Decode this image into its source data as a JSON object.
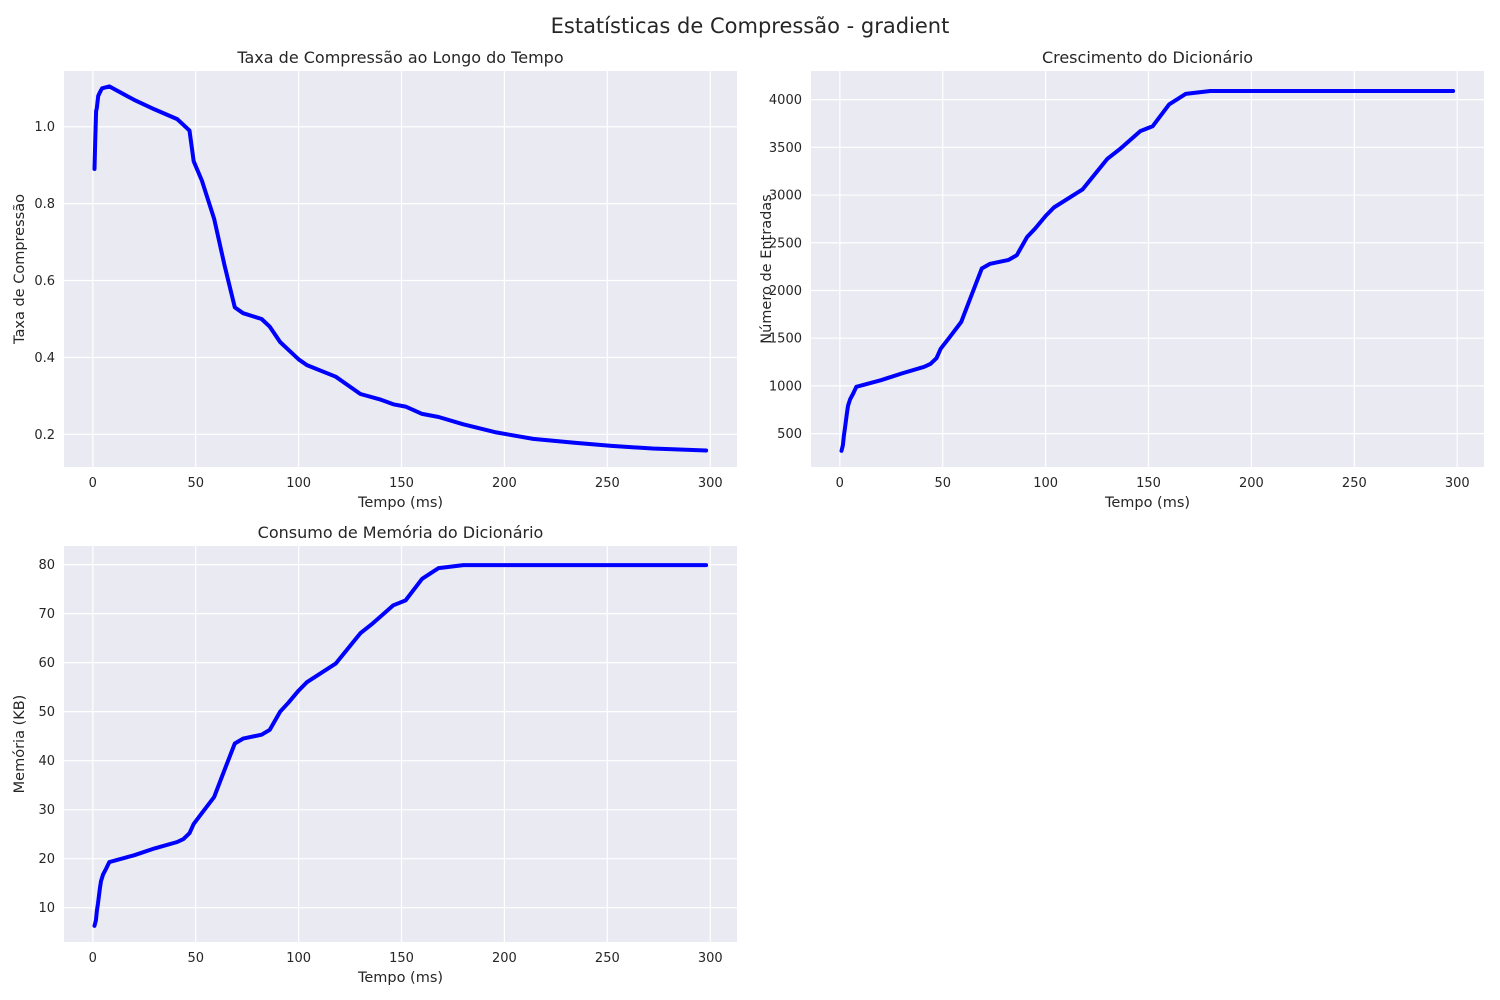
{
  "figure": {
    "suptitle": "Estatísticas de Compressão - gradient",
    "line_color": "#0000ff",
    "axes_bg": "#eaeaf2",
    "grid_color": "#ffffff"
  },
  "chart_data": [
    {
      "type": "line",
      "title": "Taxa de Compressão ao Longo do Tempo",
      "xlabel": "Tempo (ms)",
      "ylabel": "Taxa de Compressão",
      "xlim": [
        -14,
        313
      ],
      "ylim": [
        0.115,
        1.145
      ],
      "xticks": [
        0,
        50,
        100,
        150,
        200,
        250,
        300
      ],
      "yticks": [
        0.2,
        0.4,
        0.6,
        0.8,
        1.0
      ],
      "ytick_labels": [
        "0.2",
        "0.4",
        "0.6",
        "0.8",
        "1.0"
      ],
      "grid": true,
      "series": [
        {
          "x": [
            0.8,
            1.2,
            1.6,
            2.0,
            2.6,
            3.5,
            4.5,
            8,
            20,
            30,
            41,
            44,
            47,
            49,
            53,
            59,
            64,
            69,
            73,
            82,
            86,
            91,
            95,
            100,
            104,
            118,
            130,
            140,
            146,
            152,
            160,
            168,
            180,
            196,
            214,
            234,
            252,
            272,
            298
          ],
          "y": [
            0.89,
            0.97,
            1.04,
            1.05,
            1.08,
            1.09,
            1.1,
            1.105,
            1.07,
            1.045,
            1.02,
            1.005,
            0.99,
            0.91,
            0.86,
            0.76,
            0.64,
            0.53,
            0.515,
            0.5,
            0.48,
            0.44,
            0.42,
            0.395,
            0.38,
            0.35,
            0.305,
            0.29,
            0.278,
            0.272,
            0.253,
            0.245,
            0.226,
            0.205,
            0.188,
            0.178,
            0.17,
            0.163,
            0.158
          ]
        }
      ]
    },
    {
      "type": "line",
      "title": "Crescimento do Dicionário",
      "xlabel": "Tempo (ms)",
      "ylabel": "Número de Entradas",
      "xlim": [
        -14,
        313
      ],
      "ylim": [
        150,
        4300
      ],
      "xticks": [
        0,
        50,
        100,
        150,
        200,
        250,
        300
      ],
      "yticks": [
        500,
        1000,
        1500,
        2000,
        2500,
        3000,
        3500,
        4000
      ],
      "ytick_labels": [
        "500",
        "1000",
        "1500",
        "2000",
        "2500",
        "3000",
        "3500",
        "4000"
      ],
      "grid": true,
      "series": [
        {
          "x": [
            0.8,
            1.5,
            2.0,
            2.5,
            3.0,
            3.5,
            4.0,
            5.0,
            6.5,
            8,
            20,
            30,
            41,
            44,
            47,
            49,
            53,
            59,
            64,
            69,
            73,
            82,
            86,
            91,
            95,
            100,
            104,
            118,
            130,
            136,
            146,
            152,
            160,
            168,
            180,
            200,
            250,
            298
          ],
          "y": [
            320,
            380,
            480,
            560,
            640,
            720,
            790,
            860,
            920,
            990,
            1060,
            1130,
            1200,
            1230,
            1290,
            1390,
            1500,
            1670,
            1950,
            2230,
            2280,
            2320,
            2370,
            2560,
            2650,
            2780,
            2870,
            3060,
            3380,
            3480,
            3670,
            3720,
            3950,
            4060,
            4090,
            4090,
            4090,
            4090
          ]
        }
      ]
    },
    {
      "type": "line",
      "title": "Consumo de Memória do Dicionário",
      "xlabel": "Tempo (ms)",
      "ylabel": "Memória (KB)",
      "xlim": [
        -14,
        313
      ],
      "ylim": [
        3,
        83.8
      ],
      "xticks": [
        0,
        50,
        100,
        150,
        200,
        250,
        300
      ],
      "yticks": [
        10,
        20,
        30,
        40,
        50,
        60,
        70,
        80
      ],
      "ytick_labels": [
        "10",
        "20",
        "30",
        "40",
        "50",
        "60",
        "70",
        "80"
      ],
      "grid": true,
      "series": [
        {
          "x": [
            0.8,
            1.5,
            2.0,
            2.5,
            3.0,
            3.5,
            4.0,
            5.0,
            6.5,
            8,
            20,
            30,
            41,
            44,
            47,
            49,
            53,
            59,
            64,
            69,
            73,
            82,
            86,
            91,
            95,
            100,
            104,
            118,
            130,
            136,
            146,
            152,
            160,
            168,
            180,
            200,
            250,
            298
          ],
          "y": [
            6.3,
            7.4,
            9.4,
            10.9,
            12.5,
            14.1,
            15.4,
            16.8,
            18.0,
            19.3,
            20.7,
            22.1,
            23.4,
            24.0,
            25.2,
            27.1,
            29.3,
            32.6,
            38.1,
            43.5,
            44.5,
            45.3,
            46.3,
            50.0,
            51.8,
            54.3,
            56.0,
            59.8,
            66.0,
            68.0,
            71.7,
            72.7,
            77.1,
            79.3,
            79.9,
            79.9,
            79.9,
            79.9
          ]
        }
      ]
    }
  ]
}
